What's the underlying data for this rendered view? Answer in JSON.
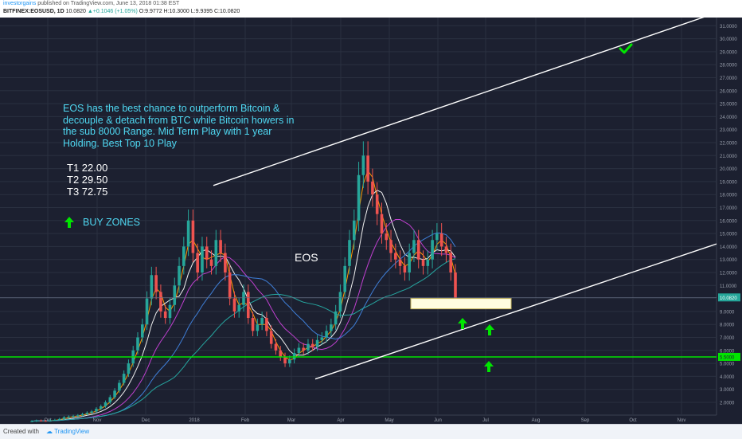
{
  "header": {
    "author": "investorgains",
    "published": "published on TradingView.com, June 13, 2018 01:38 EST",
    "symbol": "BITFINEX:EOSUSD, 1D",
    "last": "10.0820",
    "change": "+0.1046 (+1.05%)",
    "ohlc": "O:9.9772 H:10.3000 L:9.9395 C:10.0820"
  },
  "annotations": {
    "note": "EOS has the best chance to outperform Bitcoin & decouple & detach from BTC while Bitcoin howers in the sub 8000 Range. Mid Term Play with 1 year Holding. Best Top 10 Play",
    "targets": [
      "T1 22.00",
      "T2 29.50",
      "T3 72.75"
    ],
    "buy_zones": "BUY ZONES",
    "symbol_label": "EOS"
  },
  "footer": {
    "created_with": "Created with",
    "brand": "TradingView"
  },
  "colors": {
    "background": "#1c2030",
    "grid": "#2a3040",
    "up_candle": "#26a69a",
    "down_candle": "#ef5350",
    "annotation_text": "#4fd8f2",
    "buy_arrow": "#00e600",
    "support_line": "#00e600",
    "trendline": "#ffffff",
    "buy_box": "#fffde0"
  },
  "icons": {
    "buy_arrow": "green-up-arrow-icon",
    "check": "green-checkmark-icon"
  },
  "chart_data": {
    "type": "candlestick",
    "timeframe": "1D",
    "x_tick_labels": [
      "Oct",
      "Nov",
      "Dec",
      "2018",
      "Feb",
      "Mar",
      "Apr",
      "May",
      "Jun",
      "Jul",
      "Aug",
      "Sep",
      "Oct",
      "Nov"
    ],
    "y_tick_labels": [
      "2.0000",
      "3.0000",
      "4.0000",
      "5.0000",
      "6.0000",
      "7.0000",
      "8.0000",
      "9.0000",
      "10.0000",
      "11.0000",
      "12.0000",
      "13.0000",
      "14.0000",
      "15.0000",
      "16.0000",
      "17.0000",
      "18.0000",
      "19.0000",
      "20.0000",
      "21.0000",
      "22.0000",
      "23.0000",
      "24.0000",
      "25.0000",
      "26.0000",
      "27.0000",
      "28.0000",
      "29.0000",
      "30.0000",
      "31.0000",
      "32.0000"
    ],
    "ylim": [
      1.3,
      32
    ],
    "last_price_label": "10.0820",
    "support_level": 5.5,
    "support_label": "5.5000",
    "closes": [
      0.55,
      0.6,
      0.58,
      0.57,
      0.62,
      0.65,
      0.72,
      0.85,
      0.9,
      0.95,
      1.0,
      1.1,
      1.2,
      1.3,
      1.5,
      1.7,
      2.0,
      2.4,
      2.9,
      3.5,
      4.2,
      5.0,
      6.0,
      7.0,
      8.0,
      10.0,
      11.8,
      10.5,
      9.0,
      8.5,
      9.5,
      11.0,
      12.5,
      14.0,
      16.0,
      13.5,
      12.0,
      14.0,
      13.0,
      12.5,
      14.5,
      13.5,
      12.0,
      10.0,
      9.0,
      9.5,
      10.5,
      8.5,
      7.5,
      8.0,
      8.5,
      7.5,
      6.5,
      6.0,
      5.5,
      5.0,
      5.3,
      5.8,
      6.2,
      6.0,
      6.5,
      6.3,
      6.8,
      7.0,
      7.5,
      8.0,
      9.0,
      10.5,
      12.5,
      14.5,
      16.0,
      19.5,
      21.0,
      19.0,
      18.0,
      16.5,
      15.0,
      14.5,
      13.5,
      13.0,
      12.5,
      12.0,
      13.5,
      14.5,
      13.0,
      12.5,
      13.0,
      14.5,
      15.0,
      14.0,
      13.5,
      12.0,
      10.0
    ],
    "moving_averages": [
      "orange fast",
      "white",
      "purple",
      "blue",
      "teal slow"
    ],
    "channel": {
      "upper": {
        "from": [
          "2018",
          18.7
        ],
        "to": [
          "Nov",
          32.0
        ]
      },
      "lower": {
        "from": [
          "Mar",
          3.8
        ],
        "to": [
          "Nov",
          14.2
        ]
      }
    },
    "buy_zone_box": {
      "from": [
        "May",
        10.0
      ],
      "to": [
        "Jul",
        9.2
      ]
    }
  }
}
